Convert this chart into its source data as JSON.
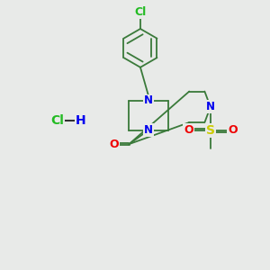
{
  "background_color": "#e8eae8",
  "bond_color": "#3a7a3a",
  "atom_colors": {
    "N": "#0000ee",
    "O": "#ee0000",
    "S": "#cccc00",
    "Cl": "#22bb22",
    "C": "#3a7a3a"
  },
  "lw": 1.3
}
